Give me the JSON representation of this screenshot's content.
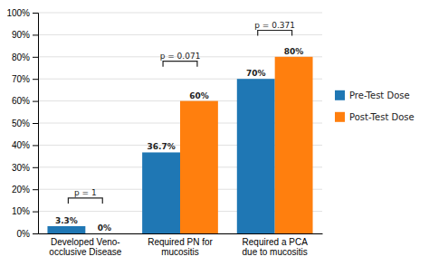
{
  "chart_data": {
    "type": "bar",
    "categories": [
      "Developed Veno-\nocclusive Disease",
      "Required PN for\nmucositis",
      "Required a PCA\ndue to mucositis"
    ],
    "series": [
      {
        "name": "Pre-Test Dose",
        "values": [
          3.3,
          36.7,
          70.0
        ],
        "value_labels": [
          "3.3%",
          "36.7%",
          "70%"
        ]
      },
      {
        "name": "Post-Test Dose",
        "values": [
          0.0,
          60.0,
          80.0
        ],
        "value_labels": [
          "0%",
          "60%",
          "80%"
        ]
      }
    ],
    "ylim": [
      0,
      100
    ],
    "yticks": [
      {
        "value": 0,
        "label": "0%"
      },
      {
        "value": 10,
        "label": "10%"
      },
      {
        "value": 20,
        "label": "20%"
      },
      {
        "value": 30,
        "label": "30%"
      },
      {
        "value": 40,
        "label": "40%"
      },
      {
        "value": 50,
        "label": "50%"
      },
      {
        "value": 60,
        "label": "60%"
      },
      {
        "value": 70,
        "label": "70%"
      },
      {
        "value": 80,
        "label": "80%"
      },
      {
        "value": 90,
        "label": "90%"
      },
      {
        "value": 100,
        "label": "100%"
      }
    ],
    "grid": true,
    "legend": "right",
    "data_labels": true,
    "annotations": [
      {
        "text": "p = 1",
        "category": "Developed Veno-\nocclusive Disease",
        "y": 16
      },
      {
        "text": "p = 0.071",
        "category": "Required PN for\nmucositis",
        "y": 78
      },
      {
        "text": "p = 0.371",
        "category": "Required a PCA\ndue to mucositis",
        "y": 92
      }
    ]
  }
}
